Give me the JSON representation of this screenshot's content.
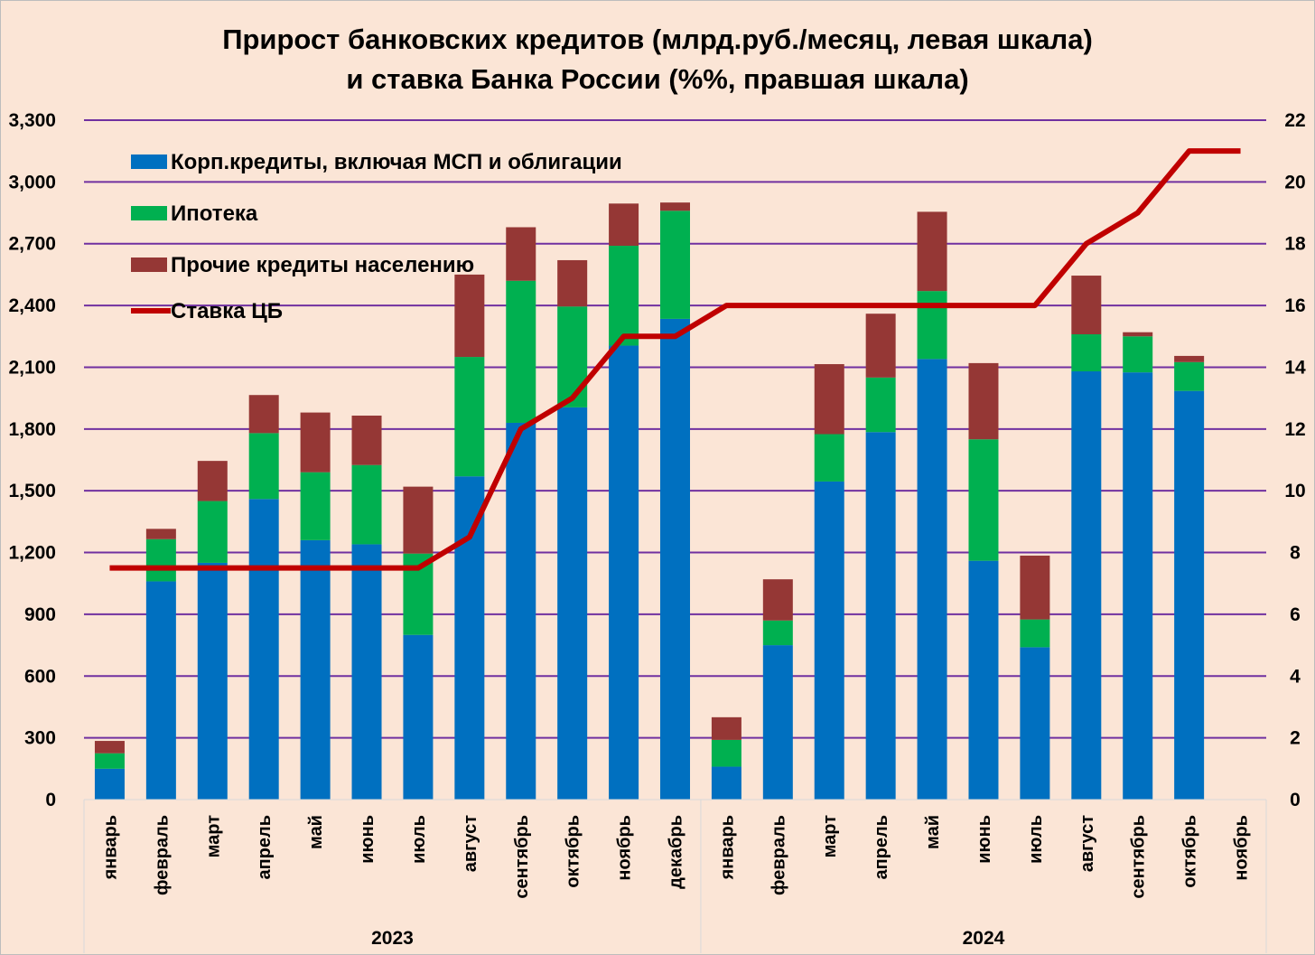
{
  "chart_data": {
    "type": "bar",
    "stacked": true,
    "title_line1": "Прирост банковских кредитов (млрд.руб./месяц, левая шкала)",
    "title_line2": "и ставка Банка России (%%, правшая шкала)",
    "categories": [
      "январь",
      "февраль",
      "март",
      "апрель",
      "май",
      "июнь",
      "июль",
      "август",
      "сентябрь",
      "октябрь",
      "ноябрь",
      "декабрь",
      "январь",
      "февраль",
      "март",
      "апрель",
      "май",
      "июнь",
      "июль",
      "август",
      "сентябрь",
      "октябрь",
      "ноябрь"
    ],
    "groups": [
      {
        "label": "2023",
        "count": 12
      },
      {
        "label": "2024",
        "count": 11
      }
    ],
    "series": [
      {
        "name": "Корп.кредиты, включая МСП и облигации",
        "color": "#0070c0",
        "values": [
          150,
          1060,
          1150,
          1460,
          1260,
          1240,
          800,
          1570,
          1830,
          1905,
          2205,
          2335,
          160,
          750,
          1545,
          1785,
          2140,
          1160,
          740,
          2080,
          2075,
          1985,
          null
        ]
      },
      {
        "name": "Ипотека",
        "color": "#00b050",
        "values": [
          75,
          205,
          300,
          320,
          330,
          385,
          395,
          580,
          690,
          490,
          485,
          525,
          130,
          120,
          230,
          265,
          330,
          590,
          135,
          180,
          175,
          140,
          null
        ]
      },
      {
        "name": "Прочие кредиты населению",
        "color": "#953735",
        "values": [
          60,
          50,
          195,
          185,
          290,
          240,
          325,
          400,
          260,
          225,
          205,
          40,
          110,
          200,
          340,
          310,
          385,
          370,
          310,
          285,
          20,
          30,
          null
        ]
      }
    ],
    "line_series": {
      "name": "Ставка ЦБ",
      "color": "#c00000",
      "axis": "right",
      "values": [
        7.5,
        7.5,
        7.5,
        7.5,
        7.5,
        7.5,
        7.5,
        8.5,
        12,
        13,
        15,
        15,
        16,
        16,
        16,
        16,
        16,
        16,
        16,
        18,
        19,
        21,
        21
      ]
    },
    "left_axis": {
      "ylim": [
        0,
        3300
      ],
      "ticks": [
        "0",
        "300",
        "600",
        "900",
        "1,200",
        "1,500",
        "1,800",
        "2,100",
        "2,400",
        "2,700",
        "3,000",
        "3,300"
      ]
    },
    "right_axis": {
      "ylim": [
        0,
        22
      ],
      "ticks": [
        "0",
        "2",
        "4",
        "6",
        "8",
        "10",
        "12",
        "14",
        "16",
        "18",
        "20",
        "22"
      ]
    },
    "grid": true,
    "grid_color": "#7030a0",
    "legend_position": "top-left"
  }
}
